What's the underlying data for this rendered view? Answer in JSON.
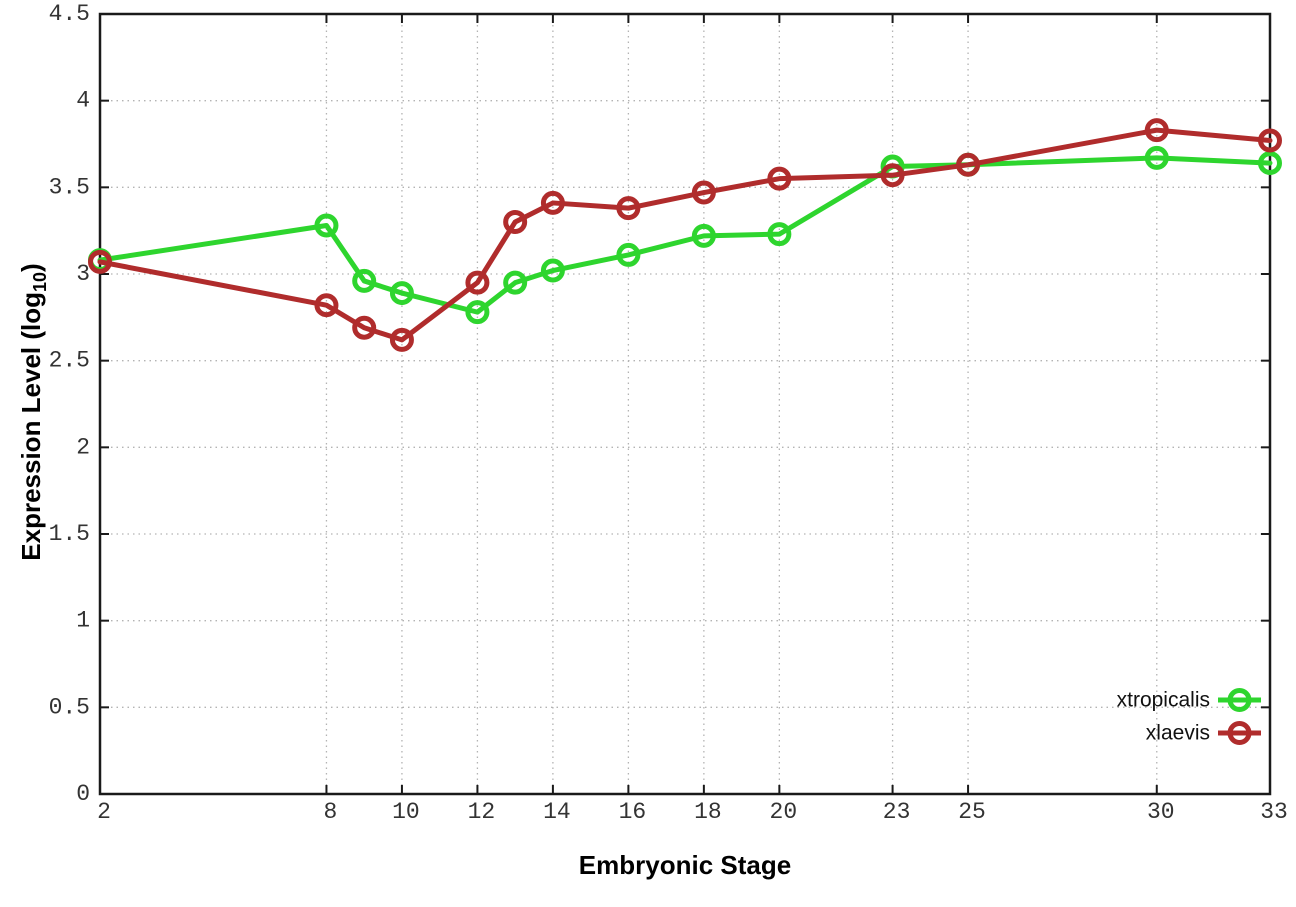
{
  "figure": {
    "description": "Gene expression line plot comparing two species across embryonic stages"
  },
  "chart_data": {
    "type": "line",
    "title": "",
    "xlabel": "Embryonic Stage",
    "ylabel": "Expression Level (log10)",
    "ylabel_parts": {
      "prefix": "Expression Level (log",
      "sub": "10",
      "suffix": ")"
    },
    "xlim": [
      2,
      33
    ],
    "ylim": [
      0,
      4.5
    ],
    "grid": true,
    "grid_style": "dotted",
    "legend_position": "bottom-right-inside",
    "x": [
      2,
      8,
      9,
      10,
      12,
      13,
      14,
      16,
      18,
      20,
      23,
      25,
      30,
      33
    ],
    "xticks": [
      2,
      8,
      10,
      12,
      14,
      16,
      18,
      20,
      23,
      25,
      30,
      33
    ],
    "xtick_labels": [
      "2",
      "8",
      "10",
      "12",
      "14",
      "16",
      "18",
      "20",
      "23",
      "25",
      "30",
      "33"
    ],
    "yticks": [
      0,
      0.5,
      1,
      1.5,
      2,
      2.5,
      3,
      3.5,
      4,
      4.5
    ],
    "ytick_labels": [
      "0",
      "0.5",
      "1",
      "1.5",
      "2",
      "2.5",
      "3",
      "3.5",
      "4",
      "4.5"
    ],
    "series": [
      {
        "name": "xtropicalis",
        "color": "#2ed52e",
        "marker": "open-circle",
        "values": [
          3.08,
          3.28,
          2.96,
          2.89,
          2.78,
          2.95,
          3.02,
          3.11,
          3.22,
          3.23,
          3.62,
          3.63,
          3.67,
          3.64
        ]
      },
      {
        "name": "xlaevis",
        "color": "#b02c2c",
        "marker": "open-circle",
        "values": [
          3.07,
          2.82,
          2.69,
          2.62,
          2.95,
          3.3,
          3.41,
          3.38,
          3.47,
          3.55,
          3.57,
          3.63,
          3.83,
          3.77
        ]
      }
    ]
  },
  "styles": {
    "background": "#ffffff",
    "axis_color": "#1a1a1a",
    "grid_color": "#b3b3b3",
    "tick_label_color": "#333333",
    "label_color": "#000000"
  }
}
